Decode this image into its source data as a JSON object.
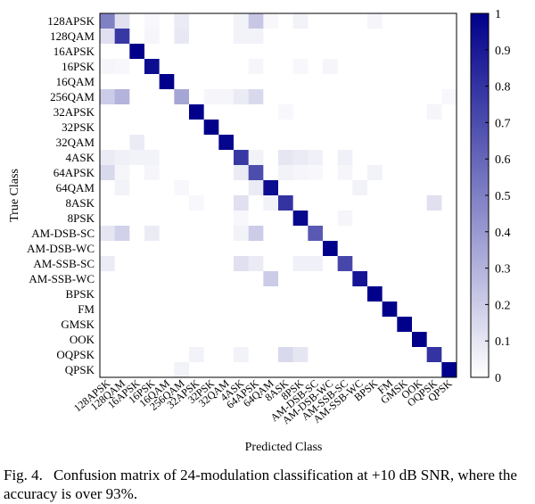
{
  "chart_data": {
    "type": "heatmap",
    "title": "",
    "xlabel": "Predicted Class",
    "ylabel": "True Class",
    "classes": [
      "128APSK",
      "128QAM",
      "16APSK",
      "16PSK",
      "16QAM",
      "256QAM",
      "32APSK",
      "32PSK",
      "32QAM",
      "4ASK",
      "64APSK",
      "64QAM",
      "8ASK",
      "8PSK",
      "AM-DSB-SC",
      "AM-DSB-WC",
      "AM-SSB-SC",
      "AM-SSB-WC",
      "BPSK",
      "FM",
      "GMSK",
      "OOK",
      "OQPSK",
      "QPSK"
    ],
    "value_range": [
      0,
      1
    ],
    "colorbar_ticks": [
      "0",
      "0.1",
      "0.2",
      "0.3",
      "0.4",
      "0.5",
      "0.6",
      "0.7",
      "0.8",
      "0.9",
      "1"
    ],
    "colorbar_tick_values": [
      0,
      0.1,
      0.2,
      0.3,
      0.4,
      0.5,
      0.6,
      0.7,
      0.8,
      0.9,
      1
    ],
    "colors": {
      "low": "#ffffff",
      "high": "#00008b"
    },
    "matrix": [
      [
        0.5,
        0.12,
        0,
        0.03,
        0,
        0.08,
        0,
        0,
        0,
        0.05,
        0.22,
        0.03,
        0,
        0.05,
        0,
        0,
        0,
        0,
        0.04,
        0,
        0,
        0,
        0,
        0
      ],
      [
        0.12,
        0.78,
        0,
        0.04,
        0,
        0.09,
        0,
        0,
        0,
        0.05,
        0.05,
        0,
        0,
        0,
        0,
        0,
        0,
        0,
        0,
        0,
        0,
        0,
        0,
        0
      ],
      [
        0,
        0,
        1.0,
        0,
        0,
        0,
        0,
        0,
        0,
        0,
        0,
        0,
        0,
        0,
        0,
        0,
        0,
        0,
        0,
        0,
        0,
        0,
        0,
        0
      ],
      [
        0.04,
        0.03,
        0,
        0.95,
        0,
        0,
        0,
        0,
        0,
        0,
        0.04,
        0,
        0,
        0.03,
        0,
        0.04,
        0,
        0,
        0,
        0,
        0,
        0,
        0,
        0
      ],
      [
        0,
        0,
        0,
        0,
        1.0,
        0,
        0,
        0,
        0,
        0,
        0,
        0,
        0,
        0,
        0,
        0,
        0,
        0,
        0,
        0,
        0,
        0,
        0,
        0
      ],
      [
        0.2,
        0.3,
        0,
        0,
        0,
        0.35,
        0,
        0.04,
        0.04,
        0.08,
        0.15,
        0,
        0,
        0,
        0,
        0,
        0,
        0,
        0,
        0,
        0,
        0,
        0,
        0.03
      ],
      [
        0,
        0,
        0,
        0,
        0,
        0,
        1.0,
        0,
        0,
        0,
        0,
        0,
        0.03,
        0,
        0,
        0,
        0,
        0,
        0,
        0,
        0,
        0,
        0.04,
        0
      ],
      [
        0,
        0,
        0,
        0,
        0,
        0,
        0,
        1.0,
        0,
        0,
        0,
        0,
        0,
        0,
        0,
        0,
        0,
        0,
        0,
        0,
        0,
        0,
        0,
        0
      ],
      [
        0,
        0,
        0.08,
        0,
        0,
        0,
        0,
        0,
        0.98,
        0,
        0,
        0,
        0,
        0,
        0,
        0,
        0,
        0,
        0,
        0,
        0,
        0,
        0,
        0
      ],
      [
        0.08,
        0.06,
        0.05,
        0.05,
        0,
        0,
        0,
        0,
        0,
        0.78,
        0.05,
        0,
        0.1,
        0.08,
        0.06,
        0,
        0.06,
        0,
        0,
        0,
        0,
        0,
        0,
        0
      ],
      [
        0.15,
        0.04,
        0,
        0.04,
        0,
        0,
        0,
        0,
        0,
        0.08,
        0.7,
        0,
        0.05,
        0.04,
        0.03,
        0,
        0.04,
        0,
        0.05,
        0,
        0,
        0,
        0,
        0
      ],
      [
        0,
        0.05,
        0,
        0,
        0,
        0.03,
        0,
        0,
        0,
        0,
        0.08,
        0.95,
        0,
        0,
        0,
        0,
        0,
        0.05,
        0,
        0,
        0,
        0,
        0,
        0
      ],
      [
        0,
        0,
        0,
        0,
        0,
        0,
        0.03,
        0,
        0,
        0.12,
        0,
        0.05,
        0.8,
        0,
        0,
        0,
        0,
        0,
        0,
        0,
        0,
        0,
        0.12,
        0
      ],
      [
        0,
        0,
        0,
        0,
        0,
        0,
        0,
        0,
        0,
        0.03,
        0,
        0,
        0,
        0.97,
        0,
        0,
        0.04,
        0,
        0,
        0,
        0,
        0,
        0,
        0
      ],
      [
        0.1,
        0.18,
        0,
        0.08,
        0,
        0,
        0,
        0,
        0,
        0.05,
        0.2,
        0,
        0,
        0,
        0.65,
        0,
        0,
        0,
        0,
        0,
        0,
        0,
        0,
        0
      ],
      [
        0,
        0,
        0,
        0,
        0,
        0,
        0,
        0,
        0,
        0,
        0,
        0,
        0,
        0,
        0,
        1.0,
        0,
        0,
        0,
        0,
        0,
        0,
        0,
        0
      ],
      [
        0.08,
        0,
        0,
        0,
        0,
        0,
        0,
        0,
        0,
        0.12,
        0.08,
        0,
        0,
        0.06,
        0.06,
        0,
        0.72,
        0,
        0,
        0,
        0,
        0,
        0,
        0
      ],
      [
        0,
        0,
        0,
        0,
        0,
        0,
        0,
        0,
        0,
        0,
        0,
        0.2,
        0,
        0,
        0,
        0,
        0,
        0.92,
        0,
        0,
        0,
        0,
        0,
        0
      ],
      [
        0,
        0,
        0,
        0,
        0,
        0,
        0,
        0,
        0,
        0,
        0,
        0,
        0,
        0,
        0,
        0,
        0,
        0,
        1.0,
        0,
        0,
        0,
        0,
        0
      ],
      [
        0,
        0,
        0,
        0,
        0,
        0,
        0,
        0,
        0,
        0,
        0,
        0,
        0,
        0,
        0,
        0,
        0,
        0,
        0,
        1.0,
        0,
        0,
        0,
        0
      ],
      [
        0,
        0,
        0,
        0,
        0,
        0,
        0,
        0,
        0,
        0,
        0,
        0,
        0,
        0,
        0,
        0,
        0,
        0,
        0,
        0,
        1.0,
        0,
        0,
        0
      ],
      [
        0,
        0,
        0,
        0,
        0,
        0,
        0,
        0,
        0,
        0,
        0,
        0,
        0,
        0,
        0,
        0,
        0,
        0,
        0,
        0,
        0,
        1.0,
        0,
        0
      ],
      [
        0,
        0,
        0,
        0,
        0,
        0,
        0.05,
        0,
        0,
        0.05,
        0,
        0,
        0.15,
        0.1,
        0,
        0,
        0,
        0,
        0,
        0,
        0,
        0,
        0.8,
        0
      ],
      [
        0,
        0,
        0,
        0,
        0,
        0.05,
        0,
        0,
        0,
        0,
        0,
        0,
        0,
        0,
        0,
        0,
        0,
        0,
        0,
        0,
        0,
        0,
        0,
        1.0
      ]
    ]
  },
  "caption": {
    "label": "Fig. 4.",
    "text": "Confusion matrix of 24-modulation classification at +10 dB SNR, where the accuracy is over 93%."
  }
}
